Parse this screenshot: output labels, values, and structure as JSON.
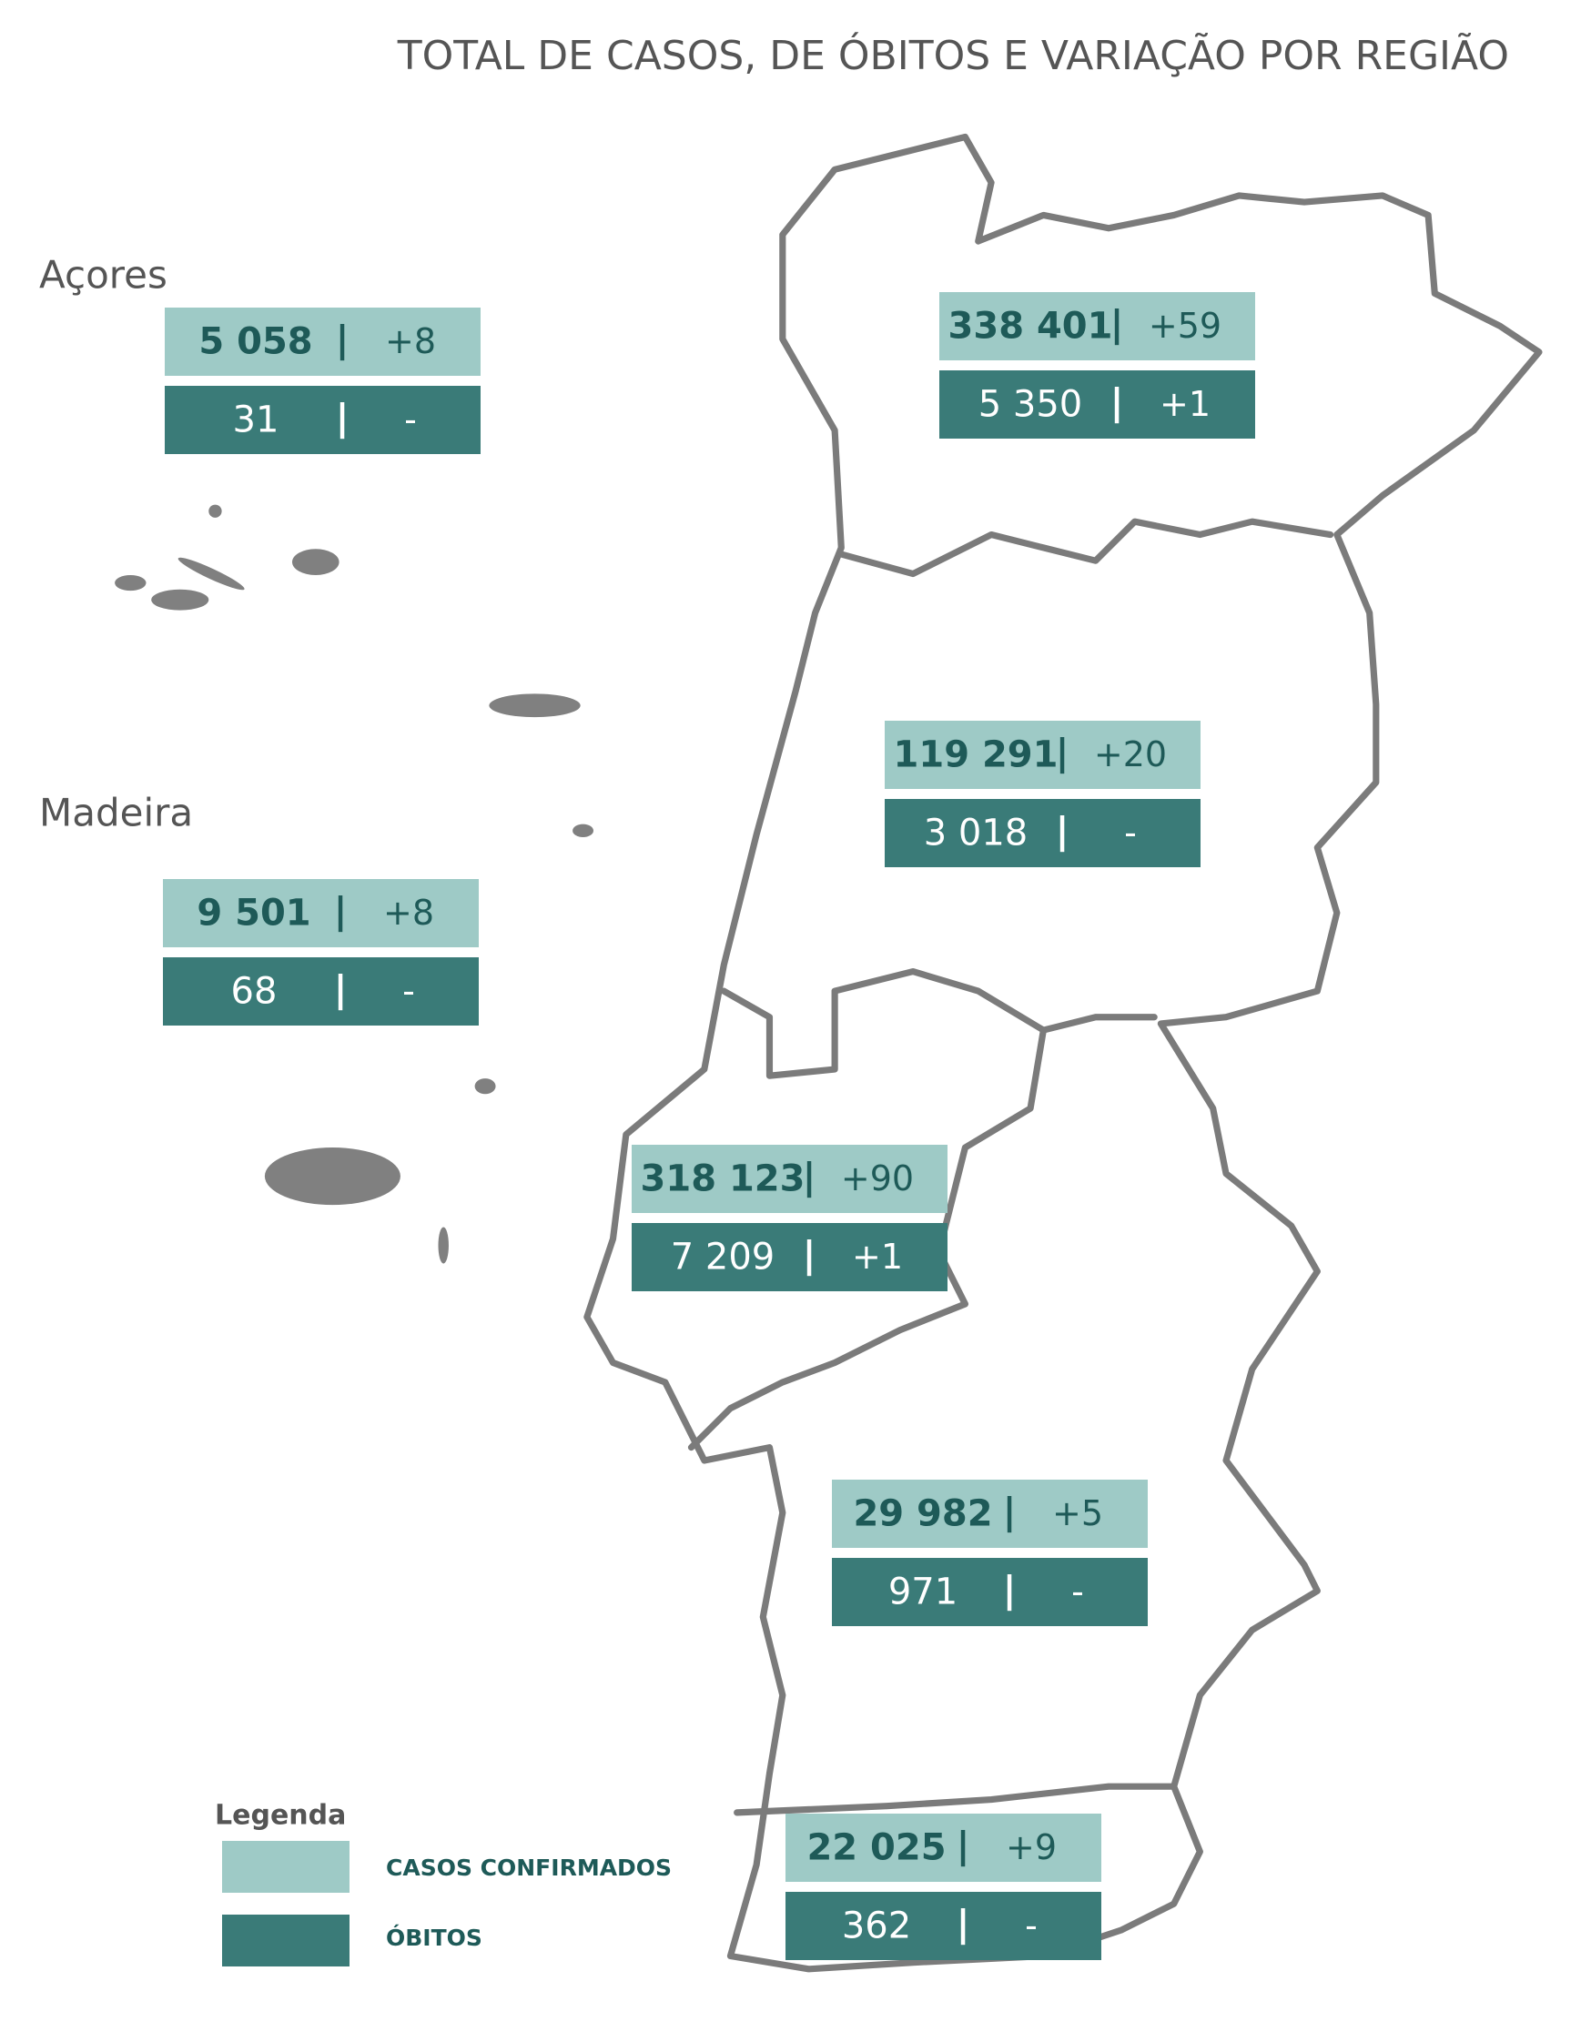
{
  "header": {
    "title": "TOTAL DE CASOS, DE ÓBITOS E VARIAÇÃO POR REGIÃO"
  },
  "regions": [
    {
      "name": "Açores",
      "cases": "5 058",
      "cases_change": "+8",
      "deaths": "31",
      "deaths_change": "-"
    },
    {
      "cases": "338 401",
      "cases_change": "+59",
      "deaths": "5 350",
      "deaths_change": "+1"
    },
    {
      "cases": "119 291",
      "cases_change": "+20",
      "deaths": "3 018",
      "deaths_change": "-"
    },
    {
      "name": "Madeira",
      "cases": "9 501",
      "cases_change": "+8",
      "deaths": "68",
      "deaths_change": "-"
    },
    {
      "cases": "318 123",
      "cases_change": "+90",
      "deaths": "7 209",
      "deaths_change": "+1"
    },
    {
      "cases": "29 982",
      "cases_change": "+5",
      "deaths": "971",
      "deaths_change": "-"
    },
    {
      "cases": "22 025",
      "cases_change": "+9",
      "deaths": "362",
      "deaths_change": "-"
    }
  ],
  "separator": "|",
  "legend": {
    "title": "Legenda",
    "items": [
      {
        "label": "CASOS CONFIRMADOS",
        "color": "#9ecac6"
      },
      {
        "label": "ÓBITOS",
        "color": "#3a7b78"
      }
    ]
  }
}
